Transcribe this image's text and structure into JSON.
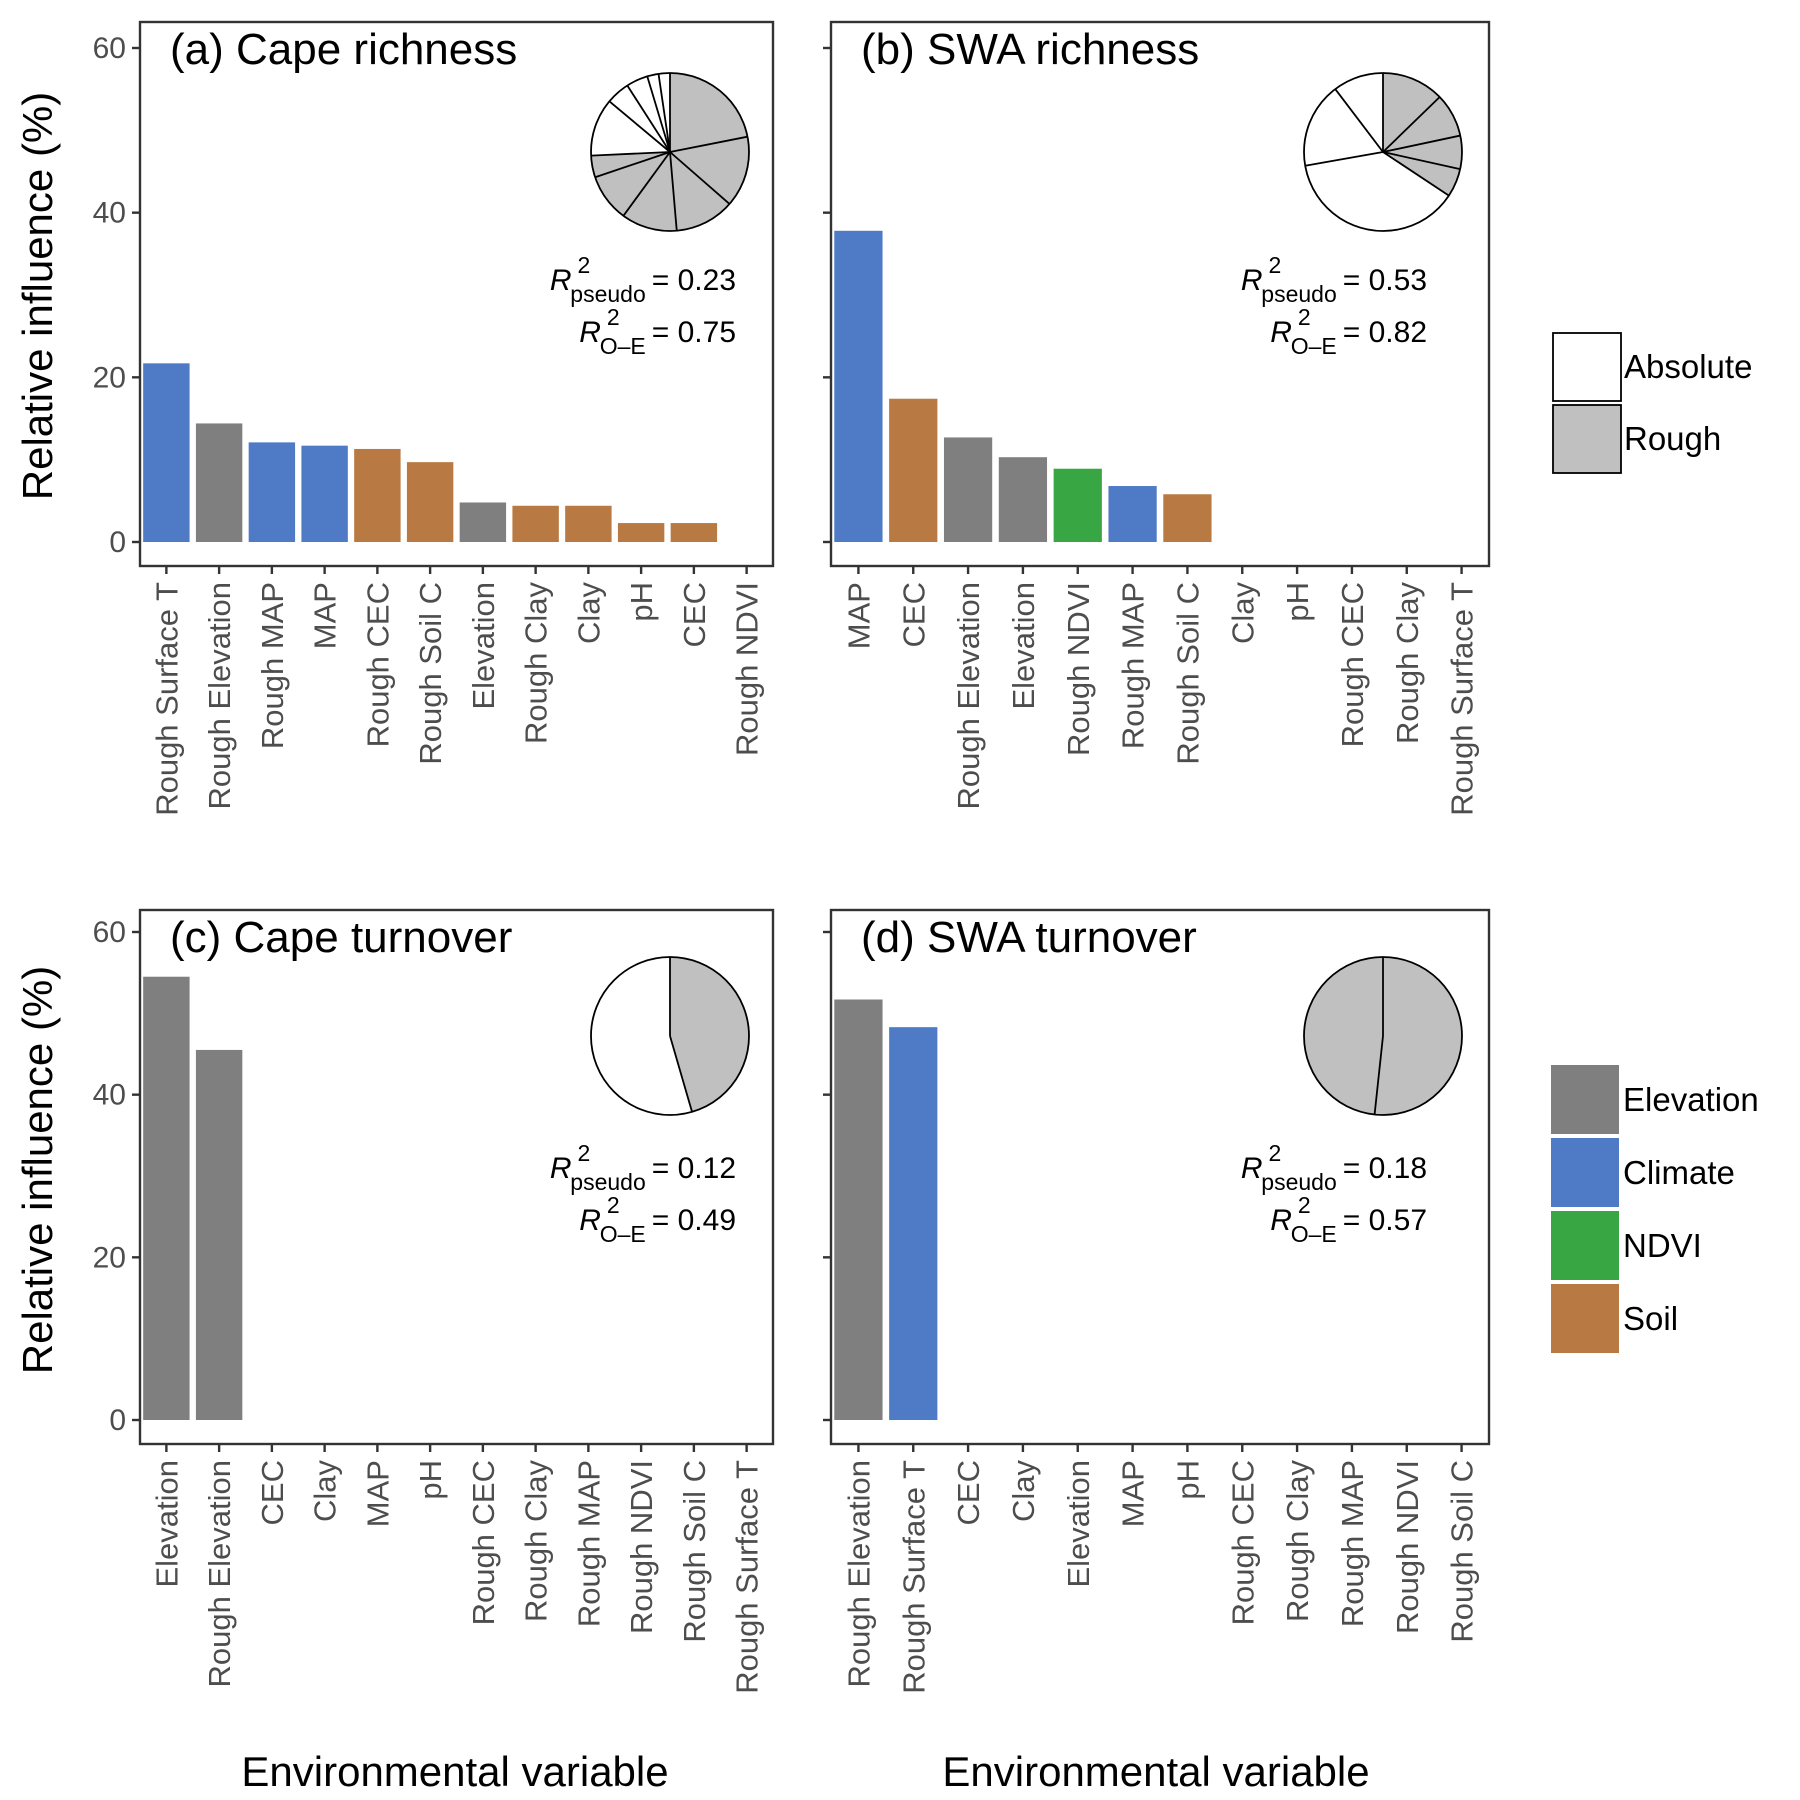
{
  "figure": {
    "y_axis_title": "Relative influence (%)",
    "x_axis_title": "Environmental variable"
  },
  "colors": {
    "Elevation": "#7f7f7f",
    "Climate": "#4f7bc6",
    "NDVI": "#38a743",
    "Soil": "#b87a42",
    "Absolute": "#ffffff",
    "Rough": "#c0c0c0"
  },
  "legend_surface": {
    "items": [
      {
        "label": "Absolute",
        "key": "Absolute"
      },
      {
        "label": "Rough",
        "key": "Rough"
      }
    ]
  },
  "legend_group": {
    "items": [
      {
        "label": "Elevation",
        "key": "Elevation"
      },
      {
        "label": "Climate",
        "key": "Climate"
      },
      {
        "label": "NDVI",
        "key": "NDVI"
      },
      {
        "label": "Soil",
        "key": "Soil"
      }
    ]
  },
  "chart_data": [
    {
      "type": "bar",
      "title": "(a) Cape richness",
      "xlabel": "",
      "ylabel": "Relative influence (%)",
      "ylim": [
        0,
        60
      ],
      "yticks": [
        0,
        20,
        40,
        60
      ],
      "r2_pseudo": "0.23",
      "r2_oe": "0.75",
      "categories": [
        "Rough Surface T",
        "Rough Elevation",
        "Rough MAP",
        "MAP",
        "Rough CEC",
        "Rough Soil C",
        "Elevation",
        "Rough Clay",
        "Clay",
        "pH",
        "CEC",
        "Rough NDVI"
      ],
      "values": [
        21.7,
        14.4,
        12.1,
        11.7,
        11.3,
        9.7,
        4.8,
        4.4,
        4.4,
        2.3,
        2.3,
        0
      ],
      "groups": [
        "Climate",
        "Elevation",
        "Climate",
        "Climate",
        "Soil",
        "Soil",
        "Elevation",
        "Soil",
        "Soil",
        "Soil",
        "Soil",
        "NDVI"
      ],
      "pie": {
        "type": "pie",
        "slices": [
          {
            "category": "Rough",
            "value": 21.7
          },
          {
            "category": "Rough",
            "value": 14.4
          },
          {
            "category": "Rough",
            "value": 12.1
          },
          {
            "category": "Rough",
            "value": 11.3
          },
          {
            "category": "Rough",
            "value": 9.7
          },
          {
            "category": "Rough",
            "value": 4.4
          },
          {
            "category": "Absolute",
            "value": 11.7
          },
          {
            "category": "Absolute",
            "value": 4.8
          },
          {
            "category": "Absolute",
            "value": 4.4
          },
          {
            "category": "Absolute",
            "value": 2.3
          },
          {
            "category": "Absolute",
            "value": 2.3
          }
        ]
      }
    },
    {
      "type": "bar",
      "title": "(b) SWA richness",
      "xlabel": "",
      "ylabel": "",
      "ylim": [
        0,
        60
      ],
      "yticks": [
        0,
        20,
        40,
        60
      ],
      "r2_pseudo": "0.53",
      "r2_oe": "0.82",
      "categories": [
        "MAP",
        "CEC",
        "Rough Elevation",
        "Elevation",
        "Rough NDVI",
        "Rough MAP",
        "Rough Soil C",
        "Clay",
        "pH",
        "Rough CEC",
        "Rough Clay",
        "Rough Surface T"
      ],
      "values": [
        37.8,
        17.4,
        12.7,
        10.3,
        8.9,
        6.8,
        5.8,
        0,
        0,
        0,
        0,
        0
      ],
      "groups": [
        "Climate",
        "Soil",
        "Elevation",
        "Elevation",
        "NDVI",
        "Climate",
        "Soil",
        "Soil",
        "Soil",
        "Soil",
        "Soil",
        "Climate"
      ],
      "pie": {
        "type": "pie",
        "slices": [
          {
            "category": "Rough",
            "value": 12.7
          },
          {
            "category": "Rough",
            "value": 8.9
          },
          {
            "category": "Rough",
            "value": 6.8
          },
          {
            "category": "Rough",
            "value": 5.8
          },
          {
            "category": "Absolute",
            "value": 37.8
          },
          {
            "category": "Absolute",
            "value": 17.4
          },
          {
            "category": "Absolute",
            "value": 10.3
          }
        ]
      }
    },
    {
      "type": "bar",
      "title": "(c) Cape turnover",
      "xlabel": "Environmental variable",
      "ylabel": "Relative influence (%)",
      "ylim": [
        0,
        60
      ],
      "yticks": [
        0,
        20,
        40,
        60
      ],
      "r2_pseudo": "0.12",
      "r2_oe": "0.49",
      "categories": [
        "Elevation",
        "Rough Elevation",
        "CEC",
        "Clay",
        "MAP",
        "pH",
        "Rough CEC",
        "Rough Clay",
        "Rough MAP",
        "Rough NDVI",
        "Rough Soil C",
        "Rough Surface T"
      ],
      "values": [
        54.5,
        45.5,
        0,
        0,
        0,
        0,
        0,
        0,
        0,
        0,
        0,
        0
      ],
      "groups": [
        "Elevation",
        "Elevation",
        "Soil",
        "Soil",
        "Climate",
        "Soil",
        "Soil",
        "Soil",
        "Climate",
        "NDVI",
        "Soil",
        "Climate"
      ],
      "pie": {
        "type": "pie",
        "slices": [
          {
            "category": "Rough",
            "value": 45.5
          },
          {
            "category": "Absolute",
            "value": 54.5
          }
        ]
      }
    },
    {
      "type": "bar",
      "title": "(d) SWA turnover",
      "xlabel": "Environmental variable",
      "ylabel": "",
      "ylim": [
        0,
        60
      ],
      "yticks": [
        0,
        20,
        40,
        60
      ],
      "r2_pseudo": "0.18",
      "r2_oe": "0.57",
      "categories": [
        "Rough Elevation",
        "Rough Surface T",
        "CEC",
        "Clay",
        "Elevation",
        "MAP",
        "pH",
        "Rough CEC",
        "Rough Clay",
        "Rough MAP",
        "Rough NDVI",
        "Rough Soil C"
      ],
      "values": [
        51.7,
        48.3,
        0,
        0,
        0,
        0,
        0,
        0,
        0,
        0,
        0,
        0
      ],
      "groups": [
        "Elevation",
        "Climate",
        "Soil",
        "Soil",
        "Elevation",
        "Climate",
        "Soil",
        "Soil",
        "Soil",
        "Climate",
        "NDVI",
        "Soil"
      ],
      "pie": {
        "type": "pie",
        "slices": [
          {
            "category": "Rough",
            "value": 51.7
          },
          {
            "category": "Rough",
            "value": 48.3
          }
        ]
      }
    }
  ]
}
